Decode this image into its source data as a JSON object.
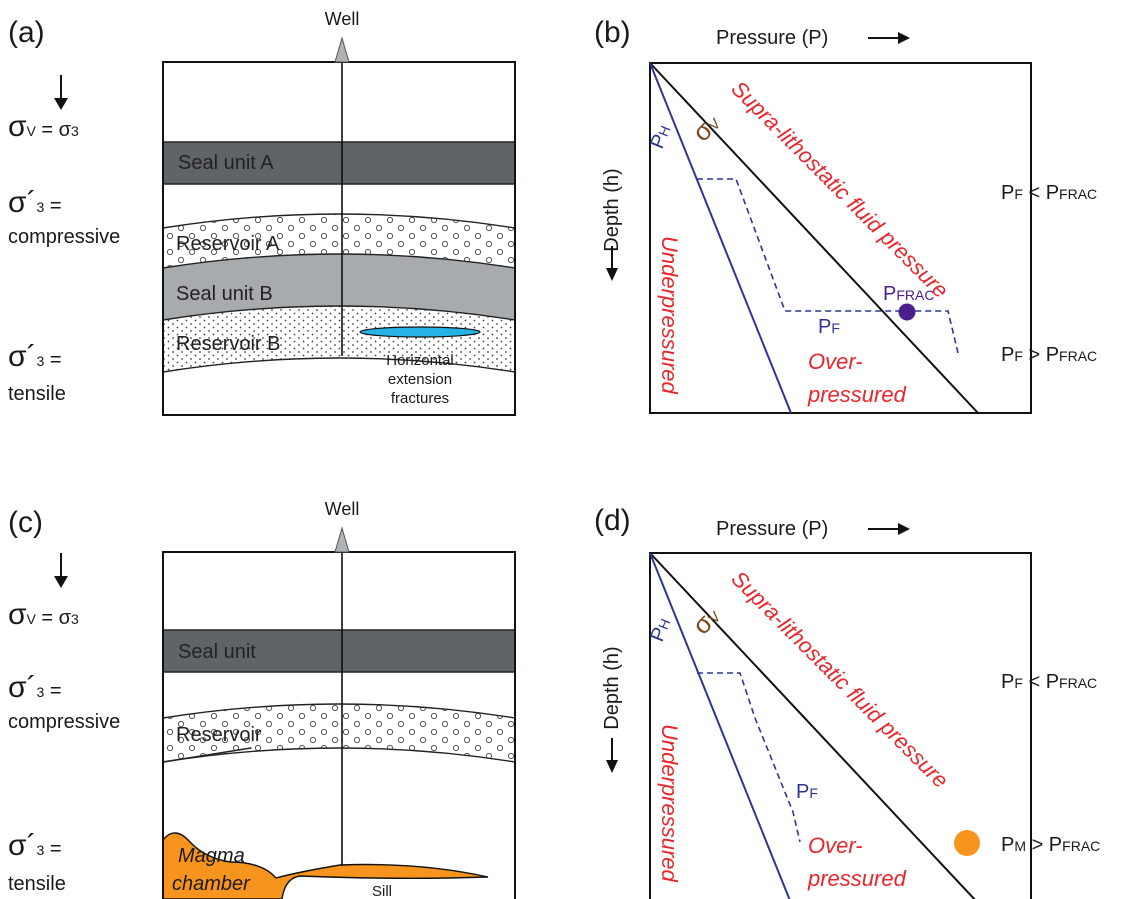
{
  "panel_a": {
    "tag": "(a)",
    "well": "Well",
    "sigma_v_eq": [
      "σ",
      "V",
      " = σ",
      "3"
    ],
    "comp_top": [
      "σ´",
      "3",
      " ="
    ],
    "comp_bottom": "compressive",
    "tens_top": [
      "σ´",
      "3",
      " ="
    ],
    "tens_bottom": "tensile",
    "units": {
      "seal_a": "Seal unit A",
      "reservoir_a": "Reservoir A",
      "seal_b": "Seal unit B",
      "reservoir_b": "Reservoir B"
    },
    "fracture_label": [
      "Horizontal",
      "extension",
      "fractures"
    ]
  },
  "panel_b": {
    "tag": "(b)",
    "pressure_axis": "Pressure (P)",
    "depth_axis": "Depth (h)",
    "sigma_v": [
      "σ",
      "V"
    ],
    "ph": [
      "P",
      "H"
    ],
    "pf": [
      "P",
      "F"
    ],
    "pfrac": [
      "P",
      "FRAC"
    ],
    "supra": "Supra-lithostatic fluid pressure",
    "under": "Underpressured",
    "over": [
      "Over-",
      "pressured"
    ],
    "cond_top": [
      "P",
      "F",
      " < P",
      "FRAC"
    ],
    "cond_bottom": [
      "P",
      "F",
      " > P",
      "FRAC"
    ]
  },
  "panel_c": {
    "tag": "(c)",
    "well": "Well",
    "sigma_v_eq": [
      "σ",
      "V",
      " = σ",
      "3"
    ],
    "comp_top": [
      "σ´",
      "3",
      " ="
    ],
    "comp_bottom": "compressive",
    "tens_top": [
      "σ´",
      "3",
      " ="
    ],
    "tens_bottom": "tensile",
    "units": {
      "seal": "Seal unit",
      "reservoir": "Reservoir"
    },
    "magma": [
      "Magma",
      "chamber"
    ],
    "sill": "Sill"
  },
  "panel_d": {
    "tag": "(d)",
    "pressure_axis": "Pressure (P)",
    "depth_axis": "Depth (h)",
    "sigma_v": [
      "σ",
      "V"
    ],
    "ph": [
      "P",
      "H"
    ],
    "pf": [
      "P",
      "F"
    ],
    "supra": "Supra-lithostatic fluid pressure",
    "under": "Underpressured",
    "over": [
      "Over-",
      "pressured"
    ],
    "cond_top": [
      "P",
      "F",
      " < P",
      "FRAC"
    ],
    "cond_bottom": [
      "P",
      "M",
      " > P",
      "FRAC"
    ]
  },
  "colors": {
    "seal_dark": "#5f6466",
    "seal_light": "#a7abad",
    "fracture": "#27b3e6",
    "magma": "#f7941d",
    "red_text": "#e8262b",
    "blue_line": "#2f3592",
    "purple_dot": "#4b1f8c",
    "sigma_v_brown": "#7a4a1c"
  }
}
